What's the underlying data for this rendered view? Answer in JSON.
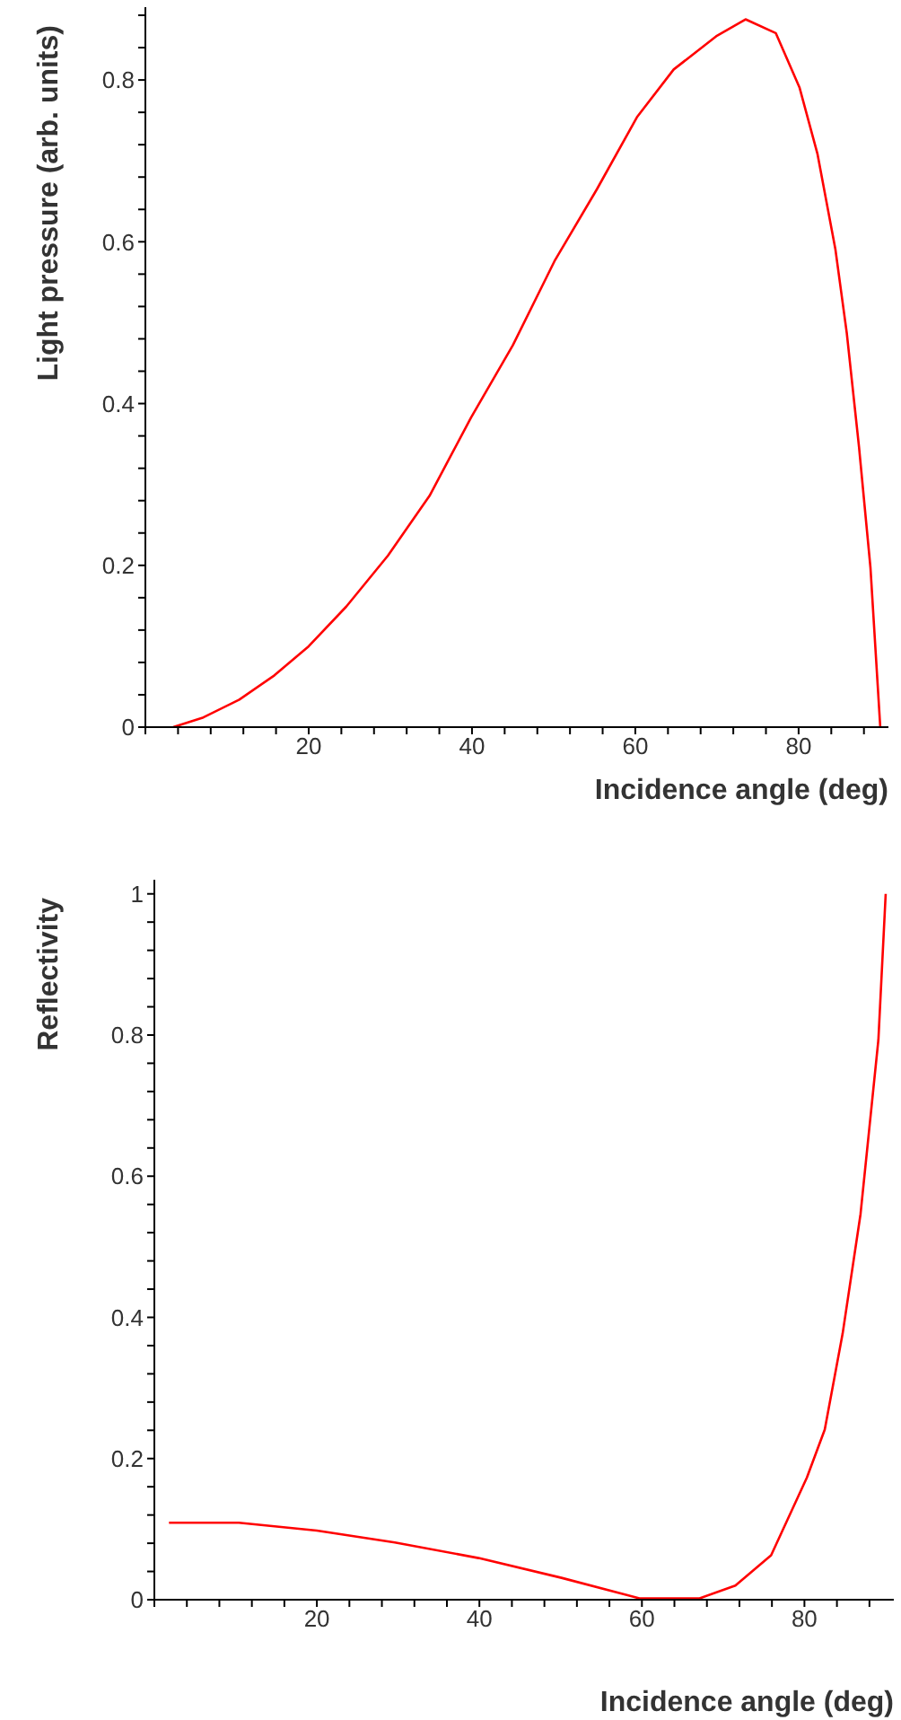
{
  "chart_data": [
    {
      "type": "line",
      "xlabel": "Incidence angle (deg)",
      "ylabel": "Light pressure (arb. units)",
      "color": "#ff0000",
      "grid": false,
      "marker": "none",
      "legend": false,
      "x": [
        3.4,
        7.1,
        11.5,
        15.8,
        20,
        24.6,
        29.7,
        34.8,
        39.9,
        45,
        50.1,
        55.3,
        60.2,
        64.7,
        69.9,
        73.5,
        77.2,
        80.1,
        82.3,
        84.5,
        85.9,
        87.4,
        88.8,
        90
      ],
      "values": [
        0,
        0.012,
        0.034,
        0.064,
        0.1,
        0.149,
        0.212,
        0.286,
        0.383,
        0.472,
        0.576,
        0.665,
        0.754,
        0.813,
        0.854,
        0.875,
        0.858,
        0.791,
        0.709,
        0.591,
        0.487,
        0.346,
        0.197,
        0
      ],
      "xlim": [
        0,
        91
      ],
      "ylim": [
        0,
        0.89
      ],
      "xticks": [
        {
          "value": 0,
          "label": null
        },
        {
          "value": 4,
          "label": null
        },
        {
          "value": 8,
          "label": null
        },
        {
          "value": 12,
          "label": null
        },
        {
          "value": 16,
          "label": null
        },
        20,
        {
          "value": 24,
          "label": null
        },
        {
          "value": 28,
          "label": null
        },
        {
          "value": 32,
          "label": null
        },
        {
          "value": 36,
          "label": null
        },
        40,
        {
          "value": 44,
          "label": null
        },
        {
          "value": 48,
          "label": null
        },
        {
          "value": 52,
          "label": null
        },
        {
          "value": 56,
          "label": null
        },
        60,
        {
          "value": 64,
          "label": null
        },
        {
          "value": 68,
          "label": null
        },
        {
          "value": 72,
          "label": null
        },
        {
          "value": 76,
          "label": null
        },
        80,
        {
          "value": 84,
          "label": null
        },
        {
          "value": 88,
          "label": null
        }
      ],
      "yticks": [
        0,
        {
          "value": 0.04,
          "label": null
        },
        {
          "value": 0.08,
          "label": null
        },
        {
          "value": 0.12,
          "label": null
        },
        {
          "value": 0.16,
          "label": null
        },
        0.2,
        {
          "value": 0.24,
          "label": null
        },
        {
          "value": 0.28,
          "label": null
        },
        {
          "value": 0.32,
          "label": null
        },
        {
          "value": 0.36,
          "label": null
        },
        0.4,
        {
          "value": 0.44,
          "label": null
        },
        {
          "value": 0.48,
          "label": null
        },
        {
          "value": 0.52,
          "label": null
        },
        {
          "value": 0.56,
          "label": null
        },
        0.6,
        {
          "value": 0.64,
          "label": null
        },
        {
          "value": 0.68,
          "label": null
        },
        {
          "value": 0.72,
          "label": null
        },
        {
          "value": 0.76,
          "label": null
        },
        0.8,
        {
          "value": 0.84,
          "label": null
        },
        {
          "value": 0.88,
          "label": null
        }
      ]
    },
    {
      "type": "line",
      "xlabel": "Incidence angle (deg)",
      "ylabel": "Reflectivity",
      "color": "#ff0000",
      "grid": false,
      "marker": "none",
      "legend": false,
      "x": [
        1.8,
        10.4,
        20,
        29.6,
        39.9,
        50.1,
        59.7,
        67.1,
        71.5,
        75.9,
        80.3,
        82.5,
        84.7,
        86.9,
        89.1,
        90
      ],
      "values": [
        0.109,
        0.109,
        0.098,
        0.081,
        0.059,
        0.031,
        0.002,
        0.002,
        0.02,
        0.063,
        0.173,
        0.241,
        0.377,
        0.546,
        0.793,
        1
      ],
      "xlim": [
        0,
        91
      ],
      "ylim": [
        0,
        1.02
      ],
      "xticks": [
        {
          "value": 0,
          "label": null
        },
        {
          "value": 4,
          "label": null
        },
        {
          "value": 8,
          "label": null
        },
        {
          "value": 12,
          "label": null
        },
        {
          "value": 16,
          "label": null
        },
        20,
        {
          "value": 24,
          "label": null
        },
        {
          "value": 28,
          "label": null
        },
        {
          "value": 32,
          "label": null
        },
        {
          "value": 36,
          "label": null
        },
        40,
        {
          "value": 44,
          "label": null
        },
        {
          "value": 48,
          "label": null
        },
        {
          "value": 52,
          "label": null
        },
        {
          "value": 56,
          "label": null
        },
        60,
        {
          "value": 64,
          "label": null
        },
        {
          "value": 68,
          "label": null
        },
        {
          "value": 72,
          "label": null
        },
        {
          "value": 76,
          "label": null
        },
        80,
        {
          "value": 84,
          "label": null
        },
        {
          "value": 88,
          "label": null
        }
      ],
      "yticks": [
        0,
        {
          "value": 0.04,
          "label": null
        },
        {
          "value": 0.08,
          "label": null
        },
        {
          "value": 0.12,
          "label": null
        },
        {
          "value": 0.16,
          "label": null
        },
        0.2,
        {
          "value": 0.24,
          "label": null
        },
        {
          "value": 0.28,
          "label": null
        },
        {
          "value": 0.32,
          "label": null
        },
        {
          "value": 0.36,
          "label": null
        },
        0.4,
        {
          "value": 0.44,
          "label": null
        },
        {
          "value": 0.48,
          "label": null
        },
        {
          "value": 0.52,
          "label": null
        },
        {
          "value": 0.56,
          "label": null
        },
        0.6,
        {
          "value": 0.64,
          "label": null
        },
        {
          "value": 0.68,
          "label": null
        },
        {
          "value": 0.72,
          "label": null
        },
        {
          "value": 0.76,
          "label": null
        },
        0.8,
        {
          "value": 0.84,
          "label": null
        },
        {
          "value": 0.88,
          "label": null
        },
        {
          "value": 0.92,
          "label": null
        },
        {
          "value": 0.96,
          "label": null
        },
        1
      ]
    }
  ]
}
